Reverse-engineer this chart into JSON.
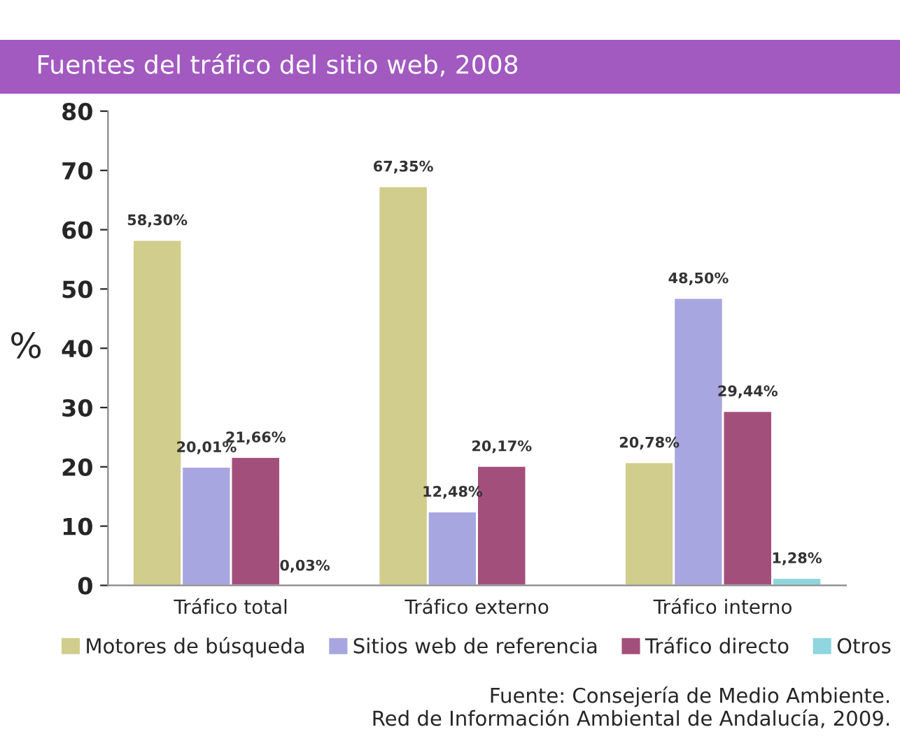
{
  "chart_data": {
    "type": "bar",
    "title": "Fuentes del tráfico del sitio web, 2008",
    "ylabel": "%",
    "categories": [
      "Tráfico total",
      "Tráfico externo",
      "Tráfico interno"
    ],
    "series": [
      {
        "name": "Motores de búsqueda",
        "color": "#d1cd8c",
        "values": [
          58.3,
          67.35,
          20.78
        ],
        "value_labels": [
          "58,30%",
          "67,35%",
          "20,78%"
        ]
      },
      {
        "name": "Sitios web de referencia",
        "color": "#a8a6e0",
        "values": [
          20.01,
          12.48,
          48.5
        ],
        "value_labels": [
          "20,01%",
          "12,48%",
          "48,50%"
        ]
      },
      {
        "name": "Tráfico directo",
        "color": "#a34f7c",
        "values": [
          21.66,
          20.17,
          29.44
        ],
        "value_labels": [
          "21,66%",
          "20,17%",
          "29,44%"
        ]
      },
      {
        "name": "Otros",
        "color": "#8fd6de",
        "values": [
          0.03,
          null,
          1.28
        ],
        "value_labels": [
          "0,03%",
          null,
          "1,28%"
        ]
      }
    ],
    "ylim": [
      0,
      80
    ],
    "yticks": [
      0,
      10,
      20,
      30,
      40,
      50,
      60,
      70,
      80
    ],
    "grid": false,
    "legend": "bottom",
    "annotations": [
      "Fuente: Consejería de Medio Ambiente.\nRed de Información Ambiental de Andalucía, 2009."
    ]
  }
}
